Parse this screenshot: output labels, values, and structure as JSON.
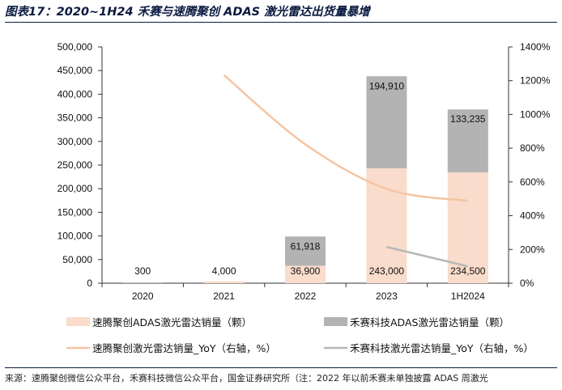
{
  "title": "图表17：2020~1H24 禾赛与速腾聚创 ADAS 激光雷达出货量暴增",
  "source": "来源：速腾聚创微信公众平台，禾赛科技微信公众平台，国金证券研究所（注：2022 年以前禾赛未单独披露 ADAS 周激光",
  "colors": {
    "robosense_bar": "#f9dccb",
    "hesai_bar": "#b3b3b3",
    "robosense_yoy": "#f6c4a2",
    "hesai_yoy": "#b7b7b7",
    "axis": "#333333"
  },
  "chart_data": {
    "type": "bar",
    "stacked": true,
    "categories": [
      "2020",
      "2021",
      "2022",
      "2023",
      "1H2024"
    ],
    "y_left": {
      "lim": [
        0,
        500000
      ],
      "ticks": [
        0,
        50000,
        100000,
        150000,
        200000,
        250000,
        300000,
        350000,
        400000,
        450000,
        500000
      ],
      "tick_labels": [
        "0",
        "50,000",
        "100,000",
        "150,000",
        "200,000",
        "250,000",
        "300,000",
        "350,000",
        "400,000",
        "450,000",
        "500,000"
      ]
    },
    "y_right": {
      "lim": [
        0,
        1400
      ],
      "ticks": [
        0,
        200,
        400,
        600,
        800,
        1000,
        1200,
        1400
      ],
      "tick_labels": [
        "0%",
        "200%",
        "400%",
        "600%",
        "800%",
        "1000%",
        "1200%",
        "1400%"
      ]
    },
    "series": [
      {
        "name": "速腾聚创ADAS激光雷达销量（颗）",
        "kind": "bar",
        "axis": "left",
        "values": [
          300,
          4000,
          36900,
          243000,
          234500
        ],
        "labels": [
          "300",
          "4,000",
          "36,900",
          "243,000",
          "234,500"
        ]
      },
      {
        "name": "禾赛科技ADAS激光雷达销量（颗）",
        "kind": "bar",
        "axis": "left",
        "values": [
          null,
          null,
          61918,
          194910,
          133235
        ],
        "labels": [
          "",
          "",
          "61,918",
          "194,910",
          "133,235"
        ]
      },
      {
        "name": "速腾聚创激光雷达销量_YoY（右轴，%）",
        "kind": "line",
        "axis": "right",
        "smooth": true,
        "values": [
          null,
          1233,
          823,
          559,
          488
        ]
      },
      {
        "name": "禾赛科技激光雷达销量_YoY（右轴，%）",
        "kind": "line",
        "axis": "right",
        "values": [
          null,
          null,
          null,
          215,
          100
        ]
      }
    ],
    "legend": {
      "position": "bottom",
      "items": [
        "速腾聚创ADAS激光雷达销量（颗）",
        "禾赛科技ADAS激光雷达销量（颗）",
        "速腾聚创激光雷达销量_YoY（右轴，%）",
        "禾赛科技激光雷达销量_YoY（右轴，%）"
      ]
    }
  }
}
